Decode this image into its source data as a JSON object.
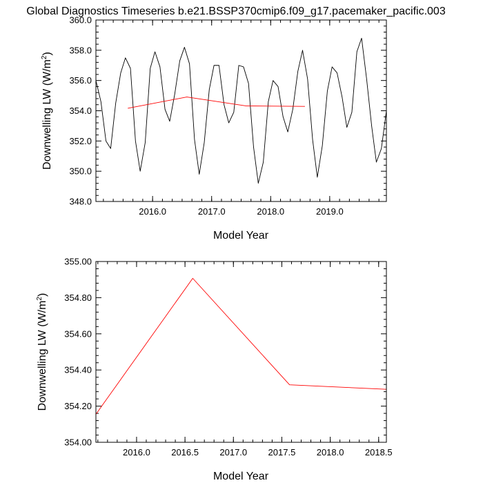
{
  "figure": {
    "title": "Global Diagnostics Timeseries b.e21.BSSP370cmip6.f09_g17.pacemaker_pacific.003"
  },
  "chart_data": [
    {
      "type": "line",
      "xlabel": "Model Year",
      "ylabel": "Downwelling LW (W/m",
      "ylabel_sup": "2",
      "ylabel_end": ")",
      "xlim": [
        2015.04,
        2019.96
      ],
      "ylim": [
        348.0,
        360.0
      ],
      "x_ticks": [
        2016.0,
        2017.0,
        2018.0,
        2019.0
      ],
      "x_tick_labels": [
        "2016.0",
        "2017.0",
        "2018.0",
        "2019.0"
      ],
      "y_ticks": [
        348,
        350,
        352,
        354,
        356,
        358,
        360
      ],
      "y_tick_labels": [
        "348.0",
        "350.0",
        "352.0",
        "354.0",
        "356.0",
        "358.0",
        "360.0"
      ],
      "series": [
        {
          "color": "#000000",
          "x": [
            2015.04,
            2015.125,
            2015.21,
            2015.29,
            2015.375,
            2015.46,
            2015.54,
            2015.625,
            2015.71,
            2015.79,
            2015.875,
            2015.96,
            2016.04,
            2016.125,
            2016.21,
            2016.29,
            2016.375,
            2016.46,
            2016.54,
            2016.625,
            2016.71,
            2016.79,
            2016.875,
            2016.96,
            2017.04,
            2017.125,
            2017.21,
            2017.29,
            2017.375,
            2017.46,
            2017.54,
            2017.625,
            2017.71,
            2017.79,
            2017.875,
            2017.96,
            2018.04,
            2018.125,
            2018.21,
            2018.29,
            2018.375,
            2018.46,
            2018.54,
            2018.625,
            2018.71,
            2018.79,
            2018.875,
            2018.96,
            2019.04,
            2019.125,
            2019.21,
            2019.29,
            2019.375,
            2019.46,
            2019.54,
            2019.625,
            2019.71,
            2019.79,
            2019.875,
            2019.96
          ],
          "y": [
            356.0,
            354.6,
            352.0,
            351.5,
            354.5,
            356.5,
            357.5,
            356.8,
            352.0,
            350.0,
            351.9,
            356.8,
            357.9,
            356.9,
            354.1,
            353.3,
            355.1,
            357.3,
            358.2,
            357.1,
            352.1,
            349.8,
            351.9,
            355.4,
            357.0,
            357.0,
            354.4,
            353.2,
            353.9,
            357.0,
            356.9,
            355.8,
            351.6,
            349.2,
            350.6,
            354.6,
            356.0,
            355.6,
            353.6,
            352.6,
            354.1,
            356.6,
            358.0,
            356.1,
            352.1,
            349.6,
            351.7,
            355.3,
            356.9,
            356.5,
            354.9,
            352.9,
            353.9,
            357.9,
            358.8,
            356.1,
            353.0,
            350.6,
            351.5,
            354.0
          ]
        },
        {
          "color": "#ff0000",
          "x": [
            2015.58,
            2016.58,
            2017.58,
            2018.58
          ],
          "y": [
            354.16,
            354.91,
            354.32,
            354.29
          ]
        }
      ]
    },
    {
      "type": "line",
      "xlabel": "Model Year",
      "ylabel": "Downwelling LW (W/m",
      "ylabel_sup": "2",
      "ylabel_end": ")",
      "xlim": [
        2015.58,
        2018.58
      ],
      "ylim": [
        354.0,
        355.0
      ],
      "x_ticks": [
        2016.0,
        2016.5,
        2017.0,
        2017.5,
        2018.0,
        2018.5
      ],
      "x_tick_labels": [
        "2016.0",
        "2016.5",
        "2017.0",
        "2017.5",
        "2018.0",
        "2018.5"
      ],
      "y_ticks": [
        354.0,
        354.2,
        354.4,
        354.6,
        354.8,
        355.0
      ],
      "y_tick_labels": [
        "354.00",
        "354.20",
        "354.40",
        "354.60",
        "354.80",
        "355.00"
      ],
      "series": [
        {
          "color": "#ff0000",
          "x": [
            2015.58,
            2016.58,
            2017.58,
            2018.58
          ],
          "y": [
            354.155,
            354.907,
            354.318,
            354.293
          ]
        }
      ]
    }
  ]
}
